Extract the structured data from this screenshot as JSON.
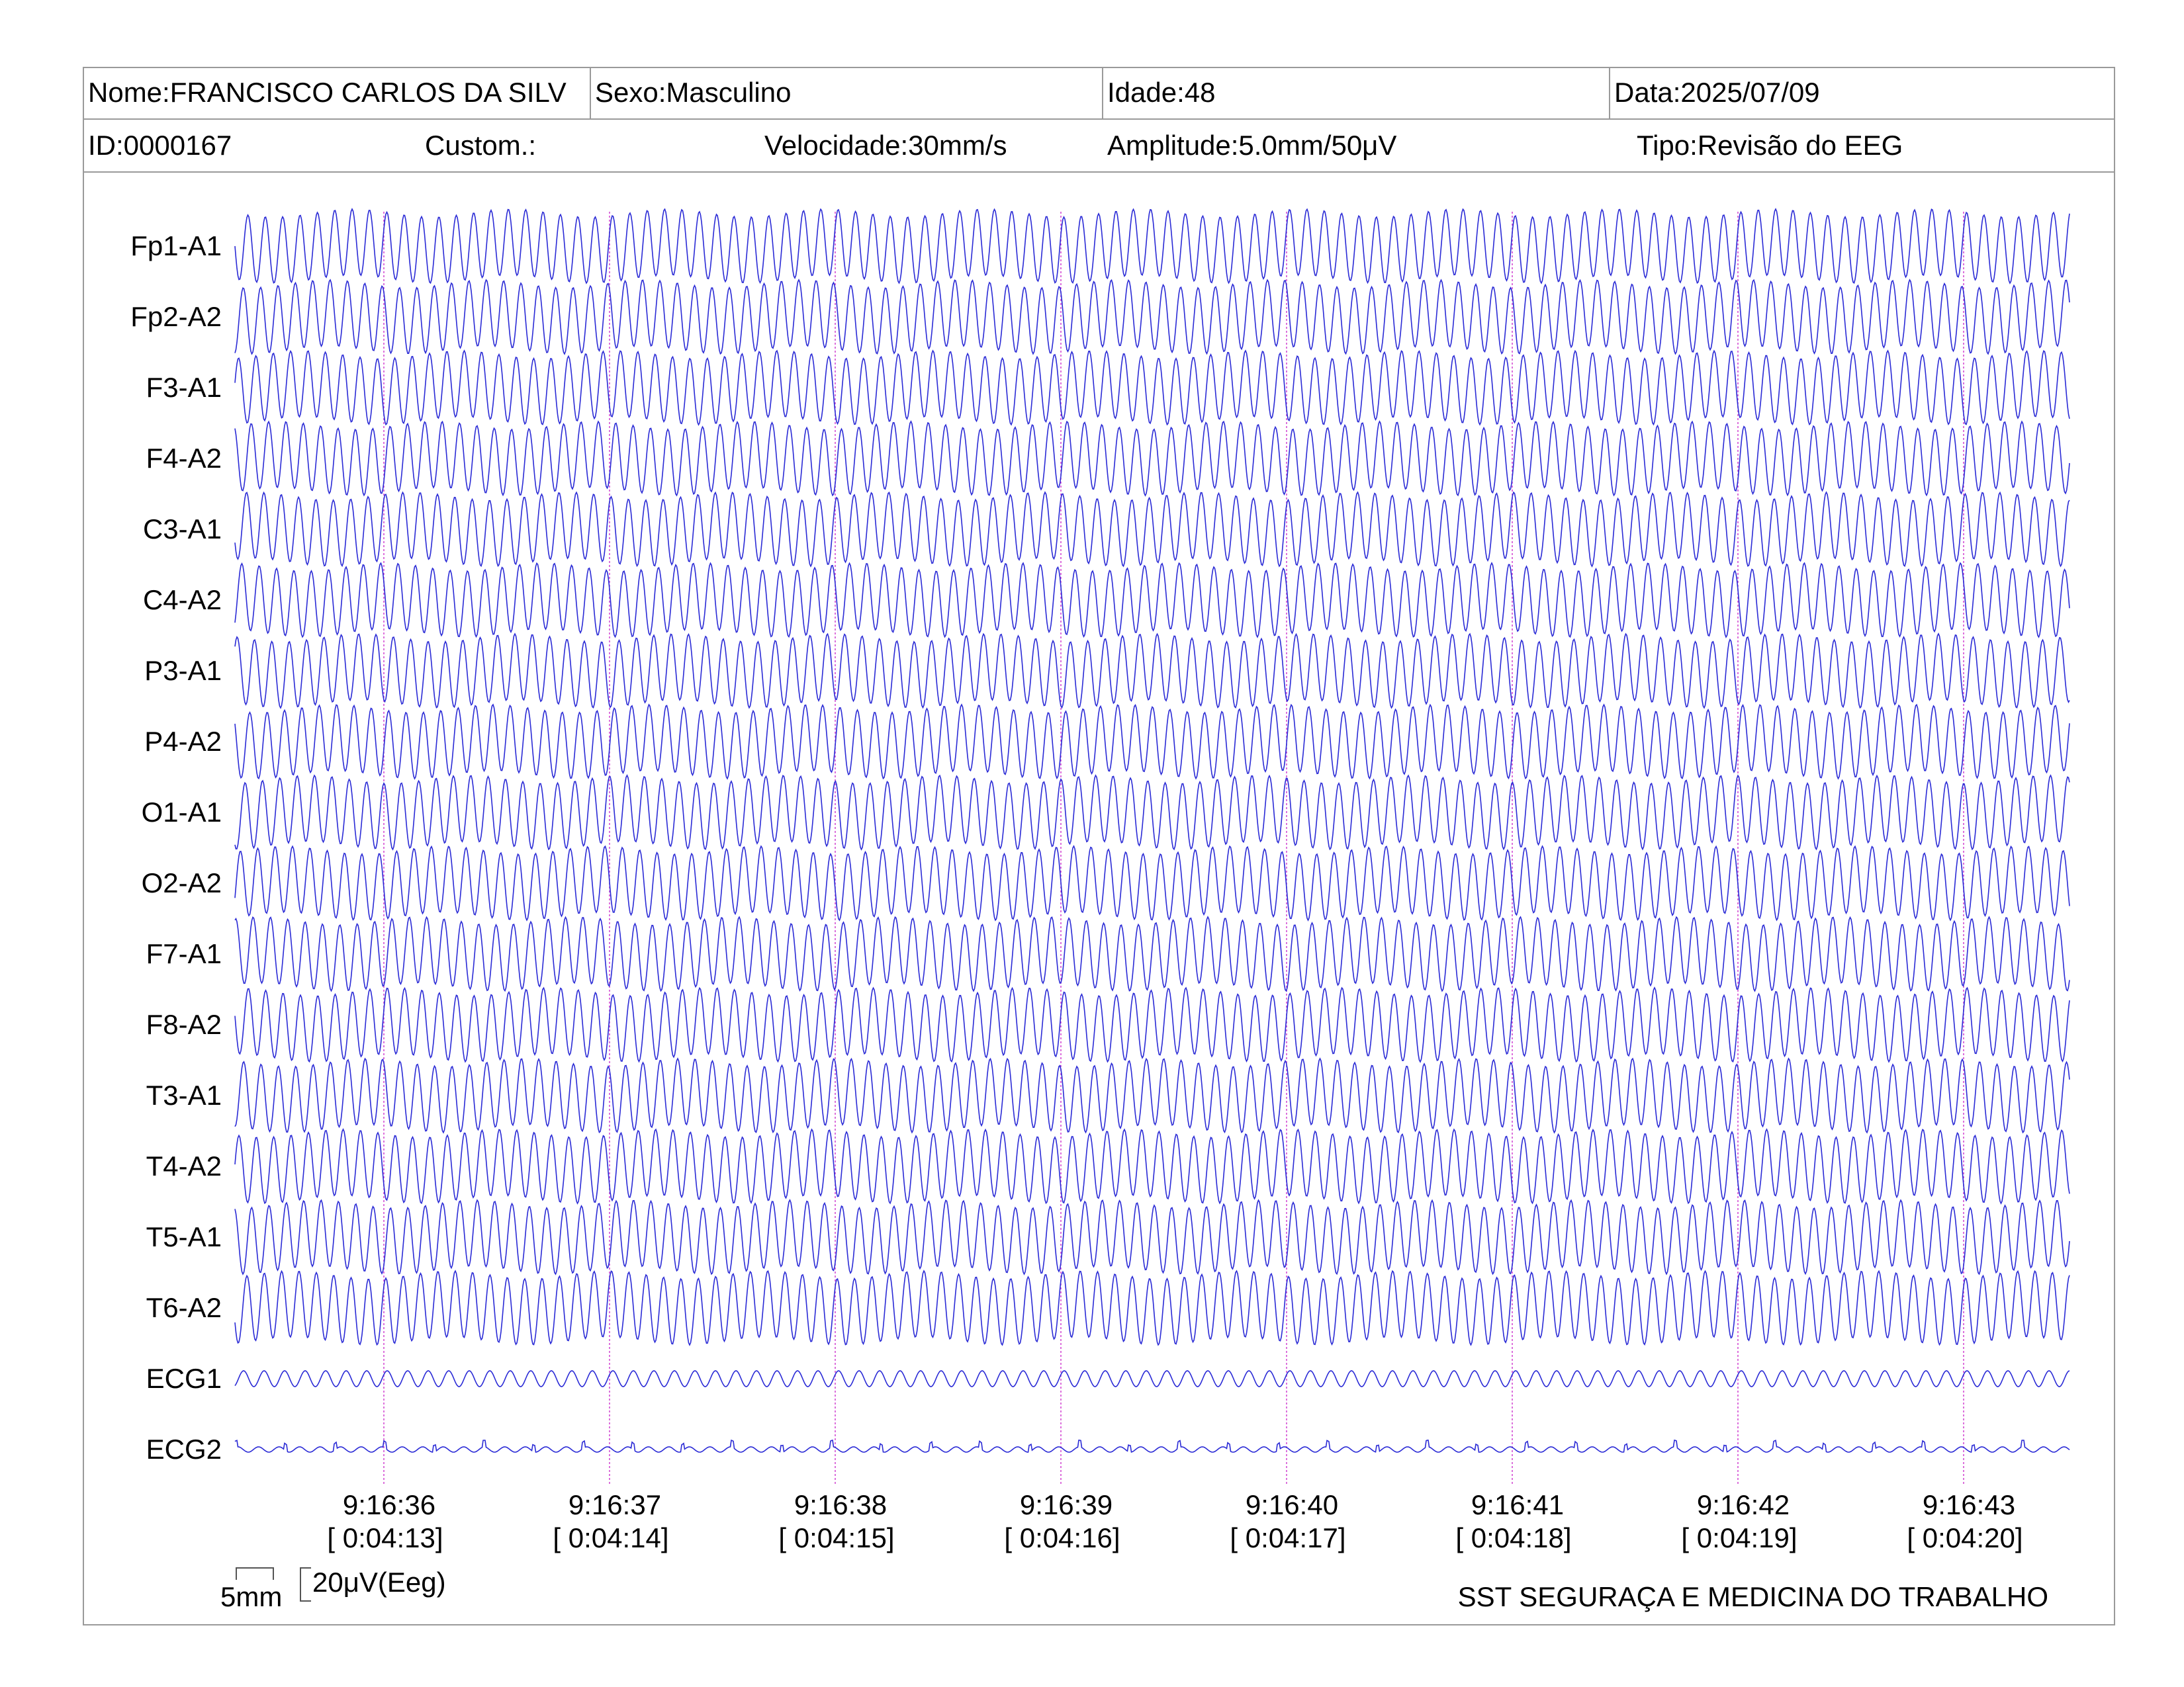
{
  "header": {
    "nome": "Nome:FRANCISCO CARLOS DA SILV",
    "sexo": "Sexo:Masculino",
    "idade": "Idade:48",
    "data": "Data:2025/07/09",
    "id": "ID:0000167",
    "custom": "Custom.:",
    "velocidade": "Velocidade:30mm/s",
    "amplitude": "Amplitude:5.0mm/50μV",
    "tipo": "Tipo:Revisão do EEG"
  },
  "channels": [
    {
      "label": "Fp1-A1"
    },
    {
      "label": "Fp2-A2"
    },
    {
      "label": "F3-A1"
    },
    {
      "label": "F4-A2"
    },
    {
      "label": "C3-A1"
    },
    {
      "label": "C4-A2"
    },
    {
      "label": "P3-A1"
    },
    {
      "label": "P4-A2"
    },
    {
      "label": "O1-A1"
    },
    {
      "label": "O2-A2"
    },
    {
      "label": "F7-A1"
    },
    {
      "label": "F8-A2"
    },
    {
      "label": "T3-A1"
    },
    {
      "label": "T4-A2"
    },
    {
      "label": "T5-A1"
    },
    {
      "label": "T6-A2"
    },
    {
      "label": "ECG1"
    },
    {
      "label": "ECG2"
    }
  ],
  "time_markers": [
    {
      "time": "9:16:36",
      "elapsed": "[ 0:04:13]"
    },
    {
      "time": "9:16:37",
      "elapsed": "[ 0:04:14]"
    },
    {
      "time": "9:16:38",
      "elapsed": "[ 0:04:15]"
    },
    {
      "time": "9:16:39",
      "elapsed": "[ 0:04:16]"
    },
    {
      "time": "9:16:40",
      "elapsed": "[ 0:04:17]"
    },
    {
      "time": "9:16:41",
      "elapsed": "[ 0:04:18]"
    },
    {
      "time": "9:16:42",
      "elapsed": "[ 0:04:19]"
    },
    {
      "time": "9:16:43",
      "elapsed": "[ 0:04:20]"
    }
  ],
  "scale": {
    "time_label": "5mm",
    "amp_label": "20μV(Eeg)"
  },
  "footer": "SST SEGURAÇA E MEDICINA DO TRABALHO",
  "colors": {
    "trace": "#2b2bd6",
    "marker": "#d040d0",
    "grid": "#9a9a9a"
  },
  "signal": {
    "eeg_cycles_per_second": 13,
    "ecg_cycles_per_second": 11
  }
}
